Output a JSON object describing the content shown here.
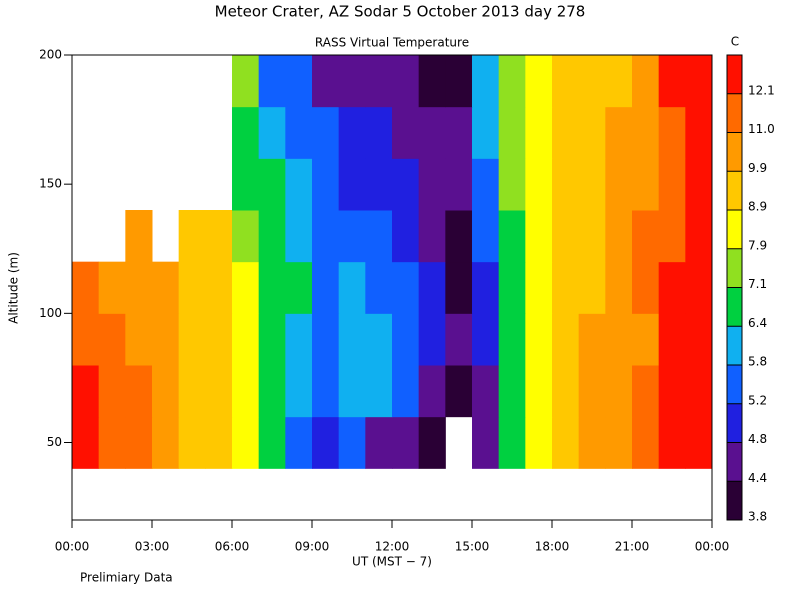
{
  "chart_data": {
    "type": "contour",
    "title": "Meteor Crater, AZ  Sodar   5 October 2013  day 278",
    "subtitle": "RASS Virtual Temperature",
    "y_label": "Altitude (m)",
    "x_label": "UT  (MST − 7)",
    "note": "Prelimiary Data",
    "colorbar_label": "C",
    "xlim": [
      0,
      24
    ],
    "xticks": [
      {
        "value": 0,
        "label": "00:00"
      },
      {
        "value": 3,
        "label": "03:00"
      },
      {
        "value": 6,
        "label": "06:00"
      },
      {
        "value": 9,
        "label": "09:00"
      },
      {
        "value": 12,
        "label": "12:00"
      },
      {
        "value": 15,
        "label": "15:00"
      },
      {
        "value": 18,
        "label": "18:00"
      },
      {
        "value": 21,
        "label": "21:00"
      },
      {
        "value": 24,
        "label": "00:00"
      }
    ],
    "ylim": [
      20,
      200
    ],
    "yticks": [
      50,
      100,
      150,
      200
    ],
    "xbins": [
      0,
      1,
      2,
      3,
      4,
      5,
      6,
      7,
      8,
      9,
      10,
      11,
      12,
      13,
      14,
      15,
      16,
      17,
      18,
      19,
      20,
      21,
      22,
      23,
      24
    ],
    "ybins": [
      40,
      60,
      80,
      100,
      120,
      140,
      160,
      180,
      200
    ],
    "z": [
      [
        12.5,
        11.5,
        11,
        10.5,
        9.5,
        9,
        8.5,
        7,
        5.5,
        4.8,
        5.2,
        4.7,
        4.5,
        4.0,
        null,
        4.5,
        6.5,
        8.5,
        9.5,
        10,
        10.5,
        11.5,
        12.5,
        13
      ],
      [
        12.5,
        11,
        11,
        10.5,
        9.5,
        9,
        8,
        7,
        6,
        5.5,
        5.9,
        5.8,
        5.2,
        4.7,
        4.2,
        4.6,
        6.5,
        8.5,
        9.5,
        10,
        10.3,
        11,
        12.5,
        13
      ],
      [
        12,
        11,
        10.5,
        10.5,
        9.5,
        9,
        8,
        7,
        6.2,
        5.7,
        6,
        6,
        5.4,
        4.9,
        4.4,
        4.8,
        6.6,
        8.5,
        9.5,
        10,
        10,
        10.8,
        12.3,
        13
      ],
      [
        11.5,
        10.5,
        10.5,
        10.5,
        9.5,
        9,
        8,
        6.8,
        6.5,
        5.5,
        5.9,
        5.7,
        5.3,
        5.0,
        4.2,
        5,
        6.8,
        8.3,
        9.3,
        9.8,
        10.5,
        11,
        12.2,
        13
      ],
      [
        null,
        null,
        10.5,
        null,
        9.5,
        9.3,
        7.5,
        6.8,
        6.3,
        5.5,
        5.3,
        5.3,
        5,
        4.7,
        4.2,
        5.2,
        7,
        8,
        9.2,
        9.5,
        10.5,
        11,
        12,
        13
      ],
      [
        null,
        null,
        null,
        null,
        null,
        null,
        7,
        6.5,
        6,
        5.3,
        5,
        5,
        4.8,
        4.5,
        4.5,
        5.5,
        7.2,
        8,
        9.2,
        9.8,
        10.2,
        10.5,
        12,
        13
      ],
      [
        null,
        null,
        null,
        null,
        null,
        null,
        7,
        6,
        5.5,
        5.2,
        4.9,
        4.8,
        4.6,
        4.4,
        4.4,
        5.8,
        7.5,
        8.3,
        9.5,
        9.5,
        10,
        10.5,
        12,
        13
      ],
      [
        null,
        null,
        null,
        null,
        null,
        null,
        7.2,
        5.5,
        5.3,
        4.6,
        4.6,
        4.7,
        4.5,
        4.3,
        4.2,
        6,
        7.5,
        8.8,
        9.6,
        9.2,
        9.8,
        10.8,
        12.3,
        13
      ]
    ],
    "levels": [
      3.8,
      4.4,
      4.8,
      5.2,
      5.8,
      6.4,
      7.1,
      7.9,
      8.9,
      9.9,
      {
        "value": 11,
        "label": "11.0"
      },
      12.1
    ],
    "colors": [
      "#2a0035",
      "#5a1090",
      "#2020e0",
      "#1060ff",
      "#10b0f0",
      "#00d040",
      "#90e020",
      "#ffff00",
      "#ffc800",
      "#ff9a00",
      "#ff6a00",
      "#ff1000"
    ]
  }
}
